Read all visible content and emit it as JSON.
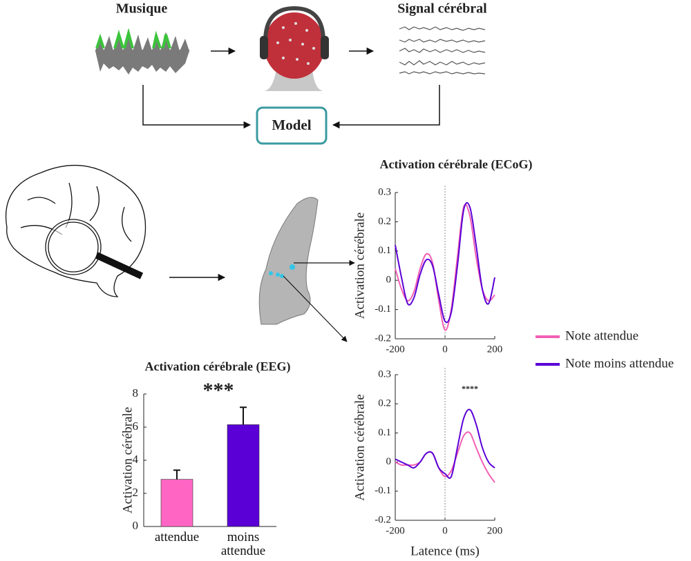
{
  "diagram": {
    "music": "Musique",
    "signal": "Signal cérébral",
    "model": "Model"
  },
  "chart_data": [
    {
      "type": "bar",
      "title": "Activation cérébrale (EEG)",
      "ylabel": "Activation cérébrale",
      "annotation": "***",
      "categories": [
        "attendue",
        "moins attendue"
      ],
      "values": [
        2.85,
        6.15
      ],
      "errors": [
        0.55,
        1.05
      ],
      "colors": [
        "#ff66c4",
        "#5a00d6"
      ],
      "ylim": [
        0,
        8
      ],
      "yticks": [
        0,
        2,
        4,
        6,
        8
      ]
    },
    {
      "type": "line",
      "title": "Activation cérébrale (ECoG)",
      "ylabel": "Activation cérébrale",
      "x": [
        -200,
        -175,
        -150,
        -125,
        -100,
        -75,
        -50,
        -25,
        0,
        25,
        50,
        75,
        100,
        125,
        150,
        175,
        200
      ],
      "series": [
        {
          "name": "Note attendue",
          "color": "#f25fb4",
          "values": [
            0.04,
            -0.03,
            -0.07,
            -0.04,
            0.04,
            0.09,
            0.06,
            -0.07,
            -0.17,
            -0.1,
            0.08,
            0.25,
            0.22,
            0.08,
            -0.03,
            -0.07,
            -0.05
          ]
        },
        {
          "name": "Note moins attendue",
          "color": "#5a00d6",
          "values": [
            0.12,
            0.01,
            -0.08,
            -0.06,
            0.02,
            0.07,
            0.05,
            -0.05,
            -0.14,
            -0.11,
            0.05,
            0.24,
            0.25,
            0.12,
            -0.03,
            -0.08,
            0.01
          ]
        }
      ],
      "xlim": [
        -200,
        200
      ],
      "xticks": [
        -200,
        0,
        200
      ],
      "ylim": [
        -0.2,
        0.3
      ],
      "yticks": [
        -0.2,
        -0.1,
        0,
        0.1,
        0.2,
        0.3
      ]
    },
    {
      "type": "line",
      "ylabel": "Activation cérébrale",
      "xlabel": "Latence (ms)",
      "annotation": "****",
      "x": [
        -200,
        -175,
        -150,
        -125,
        -100,
        -75,
        -50,
        -25,
        0,
        25,
        50,
        75,
        100,
        125,
        150,
        175,
        200
      ],
      "series": [
        {
          "color": "#f25fb4",
          "values": [
            0.0,
            -0.01,
            -0.01,
            -0.01,
            0.0,
            0.03,
            0.03,
            -0.02,
            -0.05,
            -0.03,
            0.03,
            0.09,
            0.1,
            0.05,
            0.0,
            -0.04,
            -0.07
          ]
        },
        {
          "color": "#5a00d6",
          "values": [
            0.01,
            0.0,
            -0.01,
            -0.02,
            0.0,
            0.03,
            0.03,
            -0.02,
            -0.04,
            -0.05,
            0.05,
            0.15,
            0.18,
            0.13,
            0.05,
            0.0,
            -0.02
          ]
        }
      ],
      "xlim": [
        -200,
        200
      ],
      "xticks": [
        -200,
        0,
        200
      ],
      "ylim": [
        -0.2,
        0.3
      ],
      "yticks": [
        -0.2,
        -0.1,
        0,
        0.1,
        0.2,
        0.3
      ]
    }
  ]
}
